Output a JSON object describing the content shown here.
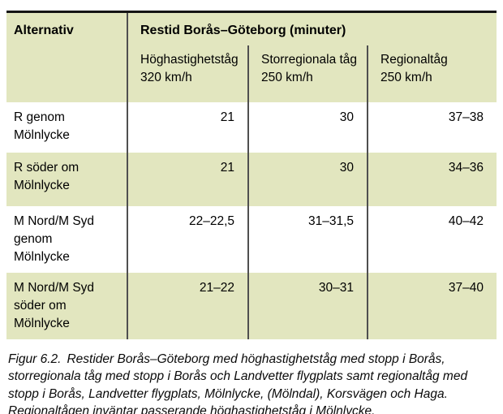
{
  "table": {
    "corner_header": "Alternativ",
    "merged_header": "Restid Borås–Göteborg (minuter)",
    "sub_headers": [
      "Höghastighetståg\n320 km/h",
      "Storregionala tåg\n250 km/h",
      "Regionaltåg\n250 km/h"
    ],
    "rows": [
      {
        "label": "R genom\nMölnlycke",
        "values": [
          "21",
          "30",
          "37–38"
        ]
      },
      {
        "label": "R söder om\nMölnlycke",
        "values": [
          "21",
          "30",
          "34–36"
        ]
      },
      {
        "label": "M Nord/M Syd\ngenom\nMölnlycke",
        "values": [
          "22–22,5",
          "31–31,5",
          "40–42"
        ]
      },
      {
        "label": "M Nord/M Syd\nsöder om\nMölnlycke",
        "values": [
          "21–22",
          "30–31",
          "37–40"
        ]
      }
    ]
  },
  "caption": {
    "figure_label": "Figur 6.2.",
    "text": "Restider Borås–Göteborg med höghastighetståg med stopp i Borås, storregionala tåg med stopp i Borås och Landvetter flygplats samt regionaltåg med stopp i Borås, Landvetter flygplats, Mölnlycke, (Mölndal), Korsvägen och Haga. Regionaltågen inväntar passerande höghastighetståg i Mölnlycke."
  },
  "colors": {
    "row_green": "#e2e6bf",
    "divider_gray": "#4f4f4f",
    "top_border_black": "#151515",
    "text_black": "#000000"
  }
}
